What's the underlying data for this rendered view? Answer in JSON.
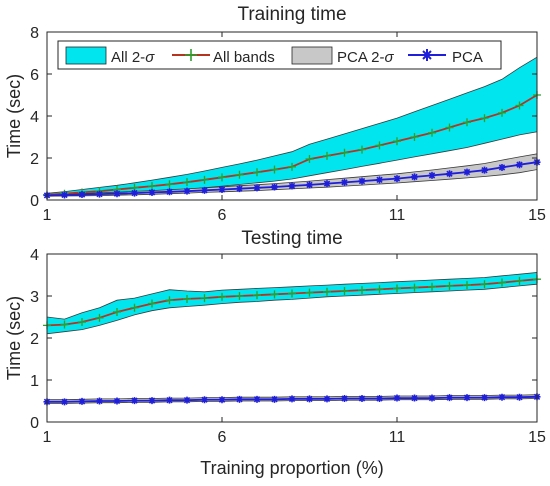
{
  "figure": {
    "xlabel": "Training proportion (%)"
  },
  "chart_data": [
    {
      "type": "line",
      "title": "Training time",
      "xlabel": "",
      "ylabel": "Time (sec)",
      "xlim": [
        1,
        15
      ],
      "ylim": [
        0,
        8
      ],
      "xticks": [
        1,
        6,
        11,
        15
      ],
      "yticks": [
        0,
        2,
        4,
        6,
        8
      ],
      "grid": false,
      "legend": {
        "placement": "top",
        "entries": [
          {
            "label": "All 2-",
            "sigma": "σ",
            "kind": "band",
            "color": "#00e5ee"
          },
          {
            "label": "All bands",
            "kind": "line",
            "color": "#b5331f",
            "marker_color": "#2ca02c"
          },
          {
            "label": "PCA 2-",
            "sigma": "σ",
            "kind": "band",
            "color": "#c8c8c8"
          },
          {
            "label": "PCA",
            "kind": "line",
            "color": "#1f1fd9"
          }
        ]
      },
      "x": [
        1,
        1.5,
        2,
        2.5,
        3,
        3.5,
        4,
        4.5,
        5,
        5.5,
        6,
        6.5,
        7,
        7.5,
        8,
        8.5,
        9,
        9.5,
        10,
        10.5,
        11,
        11.5,
        12,
        12.5,
        13,
        13.5,
        14,
        14.5,
        15
      ],
      "series": [
        {
          "name": "All bands",
          "color": "#b5331f",
          "marker_color": "#2ca02c",
          "marker": "plus",
          "values": [
            0.25,
            0.3,
            0.36,
            0.42,
            0.5,
            0.58,
            0.66,
            0.75,
            0.85,
            0.96,
            1.08,
            1.2,
            1.32,
            1.45,
            1.58,
            1.95,
            2.1,
            2.25,
            2.4,
            2.6,
            2.8,
            3.0,
            3.2,
            3.45,
            3.7,
            3.9,
            4.15,
            4.5,
            5.0
          ]
        },
        {
          "name": "PCA",
          "color": "#1f1fd9",
          "marker": "star",
          "values": [
            0.22,
            0.24,
            0.26,
            0.28,
            0.3,
            0.33,
            0.36,
            0.39,
            0.42,
            0.46,
            0.5,
            0.54,
            0.58,
            0.62,
            0.67,
            0.72,
            0.78,
            0.84,
            0.9,
            0.96,
            1.02,
            1.1,
            1.17,
            1.25,
            1.33,
            1.42,
            1.55,
            1.68,
            1.8
          ]
        }
      ],
      "bands": [
        {
          "name": "All 2-σ",
          "fill": "#00e5ee",
          "lower": [
            0.18,
            0.2,
            0.24,
            0.28,
            0.32,
            0.36,
            0.4,
            0.45,
            0.5,
            0.58,
            0.66,
            0.74,
            0.82,
            0.9,
            1.0,
            1.15,
            1.3,
            1.45,
            1.6,
            1.75,
            1.9,
            2.05,
            2.2,
            2.35,
            2.5,
            2.7,
            2.9,
            3.1,
            3.25
          ],
          "upper": [
            0.32,
            0.4,
            0.5,
            0.6,
            0.7,
            0.82,
            0.95,
            1.08,
            1.22,
            1.38,
            1.55,
            1.72,
            1.9,
            2.1,
            2.3,
            2.65,
            2.9,
            3.15,
            3.4,
            3.65,
            3.9,
            4.2,
            4.5,
            4.8,
            5.1,
            5.4,
            5.75,
            6.3,
            6.8
          ]
        },
        {
          "name": "PCA 2-σ",
          "fill": "#c8c8c8",
          "lower": [
            0.18,
            0.19,
            0.2,
            0.21,
            0.23,
            0.25,
            0.27,
            0.3,
            0.33,
            0.36,
            0.39,
            0.42,
            0.45,
            0.49,
            0.53,
            0.57,
            0.61,
            0.66,
            0.71,
            0.76,
            0.81,
            0.87,
            0.93,
            0.99,
            1.05,
            1.12,
            1.2,
            1.3,
            1.45
          ],
          "upper": [
            0.26,
            0.28,
            0.31,
            0.34,
            0.37,
            0.41,
            0.45,
            0.49,
            0.53,
            0.58,
            0.63,
            0.68,
            0.73,
            0.78,
            0.84,
            0.9,
            0.97,
            1.04,
            1.11,
            1.18,
            1.25,
            1.34,
            1.43,
            1.53,
            1.63,
            1.74,
            1.9,
            2.05,
            2.2
          ]
        }
      ]
    },
    {
      "type": "line",
      "title": "Testing time",
      "xlabel": "Training proportion (%)",
      "ylabel": "Time (sec)",
      "xlim": [
        1,
        15
      ],
      "ylim": [
        0,
        4
      ],
      "xticks": [
        1,
        6,
        11,
        15
      ],
      "yticks": [
        0,
        1,
        2,
        3,
        4
      ],
      "grid": false,
      "x": [
        1,
        1.5,
        2,
        2.5,
        3,
        3.5,
        4,
        4.5,
        5,
        5.5,
        6,
        6.5,
        7,
        7.5,
        8,
        8.5,
        9,
        9.5,
        10,
        10.5,
        11,
        11.5,
        12,
        12.5,
        13,
        13.5,
        14,
        14.5,
        15
      ],
      "series": [
        {
          "name": "All bands",
          "color": "#b5331f",
          "marker_color": "#2ca02c",
          "marker": "plus",
          "values": [
            2.3,
            2.32,
            2.38,
            2.48,
            2.62,
            2.72,
            2.82,
            2.9,
            2.93,
            2.95,
            2.98,
            3.0,
            3.02,
            3.04,
            3.06,
            3.08,
            3.1,
            3.12,
            3.14,
            3.16,
            3.18,
            3.2,
            3.22,
            3.24,
            3.26,
            3.28,
            3.32,
            3.36,
            3.4
          ]
        },
        {
          "name": "PCA",
          "color": "#1f1fd9",
          "marker": "star",
          "values": [
            0.48,
            0.48,
            0.49,
            0.5,
            0.5,
            0.51,
            0.51,
            0.52,
            0.52,
            0.53,
            0.53,
            0.54,
            0.54,
            0.54,
            0.55,
            0.55,
            0.55,
            0.56,
            0.56,
            0.56,
            0.57,
            0.57,
            0.57,
            0.58,
            0.58,
            0.58,
            0.59,
            0.59,
            0.6
          ]
        }
      ],
      "bands": [
        {
          "name": "All 2-σ",
          "fill": "#00e5ee",
          "lower": [
            2.1,
            2.15,
            2.2,
            2.3,
            2.42,
            2.55,
            2.65,
            2.72,
            2.75,
            2.78,
            2.82,
            2.85,
            2.87,
            2.9,
            2.92,
            2.95,
            2.98,
            3.0,
            3.02,
            3.04,
            3.06,
            3.08,
            3.1,
            3.12,
            3.14,
            3.16,
            3.2,
            3.24,
            3.28
          ],
          "upper": [
            2.5,
            2.45,
            2.6,
            2.72,
            2.9,
            2.95,
            3.05,
            3.15,
            3.12,
            3.1,
            3.14,
            3.16,
            3.18,
            3.2,
            3.22,
            3.24,
            3.26,
            3.28,
            3.3,
            3.32,
            3.34,
            3.36,
            3.38,
            3.4,
            3.42,
            3.44,
            3.48,
            3.52,
            3.56
          ]
        },
        {
          "name": "PCA 2-σ",
          "fill": "#c8c8c8",
          "lower": [
            0.44,
            0.44,
            0.45,
            0.46,
            0.46,
            0.47,
            0.47,
            0.48,
            0.48,
            0.49,
            0.49,
            0.5,
            0.5,
            0.5,
            0.51,
            0.51,
            0.51,
            0.52,
            0.52,
            0.52,
            0.53,
            0.53,
            0.53,
            0.54,
            0.54,
            0.54,
            0.55,
            0.55,
            0.56
          ],
          "upper": [
            0.53,
            0.53,
            0.54,
            0.55,
            0.55,
            0.56,
            0.56,
            0.57,
            0.57,
            0.58,
            0.58,
            0.59,
            0.59,
            0.59,
            0.6,
            0.6,
            0.6,
            0.61,
            0.61,
            0.61,
            0.62,
            0.62,
            0.62,
            0.63,
            0.63,
            0.63,
            0.64,
            0.64,
            0.65
          ]
        }
      ]
    }
  ]
}
